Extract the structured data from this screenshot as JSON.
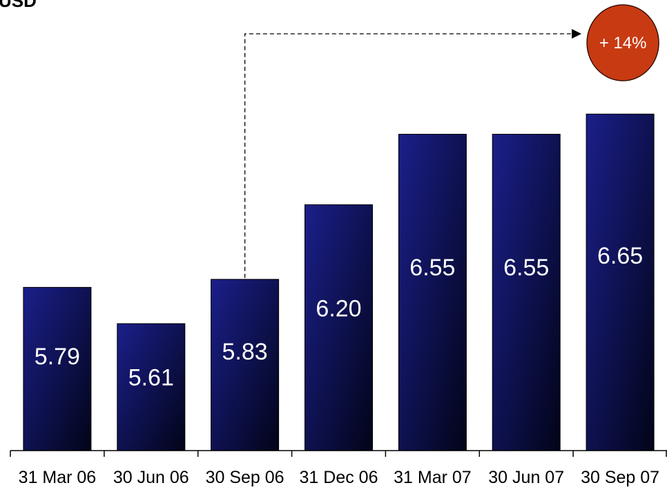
{
  "chart_data": {
    "type": "bar",
    "unit_label": "USD",
    "categories": [
      "31 Mar 06",
      "30 Jun 06",
      "30 Sep 06",
      "31 Dec 06",
      "31 Mar 07",
      "30 Jun 07",
      "30 Sep 07"
    ],
    "values": [
      5.79,
      5.61,
      5.83,
      6.2,
      6.55,
      6.55,
      6.65
    ],
    "value_labels": [
      "5.79",
      "5.61",
      "5.83",
      "6.20",
      "6.55",
      "6.55",
      "6.65"
    ],
    "annotation": {
      "text": "+ 14%",
      "from_category": "30 Sep 06",
      "to_category": "30 Sep 07",
      "style": "dashed-arrow"
    },
    "grid": false,
    "legend": "none"
  },
  "colors": {
    "bar_top": "#1b1f8a",
    "bar_bottom": "#020418",
    "badge": "#c83a12",
    "badge_stroke": "#3a1206",
    "axis": "#000000"
  }
}
